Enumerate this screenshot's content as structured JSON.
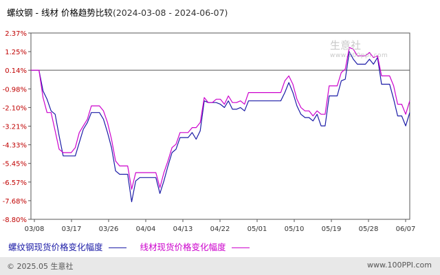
{
  "header": {
    "title": "螺纹钢 - 线材 价格趋势比较",
    "range": "(2024-03-08 - 2024-06-07)"
  },
  "watermark": {
    "name": "生意社",
    "url": "www.100ppi.com"
  },
  "legend": [
    {
      "label": "螺纹钢现货价格变化幅度",
      "color": "#1a1aa6"
    },
    {
      "label": "线材现货价格变化幅度",
      "color": "#cc00cc"
    }
  ],
  "footer": {
    "copyright": "© 2025.05 生意社",
    "site": "www.100PPI.com"
  },
  "chart_data": {
    "type": "line",
    "x_ticks": [
      "03/08",
      "03/17",
      "03/26",
      "04/04",
      "04/13",
      "04/22",
      "05/01",
      "05/10",
      "05/19",
      "05/28",
      "06/07"
    ],
    "y_ticks": [
      "2.37%",
      "1.25%",
      "0.14%",
      "-0.98%",
      "-2.10%",
      "-3.21%",
      "-4.33%",
      "-5.45%",
      "-6.57%",
      "-7.68%",
      "-8.80%"
    ],
    "ylim": [
      -8.8,
      2.37
    ],
    "reference_line": 0.14,
    "grid": false,
    "series": [
      {
        "name": "螺纹钢现货价格变化幅度",
        "color": "#1a1aa6",
        "points": [
          [
            0,
            0.14
          ],
          [
            2,
            0.14
          ],
          [
            3,
            -1.1
          ],
          [
            4,
            -1.6
          ],
          [
            5,
            -2.3
          ],
          [
            6,
            -2.5
          ],
          [
            7,
            -3.8
          ],
          [
            8,
            -5.0
          ],
          [
            9,
            -5.0
          ],
          [
            10,
            -5.0
          ],
          [
            11,
            -5.0
          ],
          [
            12,
            -4.2
          ],
          [
            13,
            -3.4
          ],
          [
            14,
            -3.0
          ],
          [
            15,
            -2.4
          ],
          [
            16,
            -2.4
          ],
          [
            17,
            -2.4
          ],
          [
            18,
            -2.8
          ],
          [
            19,
            -3.6
          ],
          [
            20,
            -4.5
          ],
          [
            21,
            -5.9
          ],
          [
            22,
            -6.1
          ],
          [
            23,
            -6.1
          ],
          [
            24,
            -6.1
          ],
          [
            25,
            -7.75
          ],
          [
            26,
            -6.5
          ],
          [
            27,
            -6.3
          ],
          [
            28,
            -6.3
          ],
          [
            29,
            -6.3
          ],
          [
            30,
            -6.3
          ],
          [
            31,
            -6.3
          ],
          [
            32,
            -7.25
          ],
          [
            33,
            -6.5
          ],
          [
            34,
            -5.6
          ],
          [
            35,
            -4.8
          ],
          [
            36,
            -4.6
          ],
          [
            37,
            -3.9
          ],
          [
            38,
            -3.9
          ],
          [
            39,
            -3.9
          ],
          [
            40,
            -3.6
          ],
          [
            41,
            -4.0
          ],
          [
            42,
            -3.5
          ],
          [
            43,
            -1.7
          ],
          [
            44,
            -1.8
          ],
          [
            45,
            -1.8
          ],
          [
            46,
            -1.8
          ],
          [
            47,
            -1.9
          ],
          [
            48,
            -2.1
          ],
          [
            49,
            -1.7
          ],
          [
            50,
            -2.2
          ],
          [
            51,
            -2.2
          ],
          [
            52,
            -2.1
          ],
          [
            53,
            -2.3
          ],
          [
            54,
            -1.7
          ],
          [
            55,
            -1.7
          ],
          [
            56,
            -1.7
          ],
          [
            57,
            -1.7
          ],
          [
            58,
            -1.7
          ],
          [
            59,
            -1.7
          ],
          [
            60,
            -1.7
          ],
          [
            61,
            -1.7
          ],
          [
            62,
            -1.7
          ],
          [
            63,
            -1.2
          ],
          [
            64,
            -0.6
          ],
          [
            65,
            -1.2
          ],
          [
            66,
            -2.0
          ],
          [
            67,
            -2.5
          ],
          [
            68,
            -2.7
          ],
          [
            69,
            -2.7
          ],
          [
            70,
            -2.9
          ],
          [
            71,
            -2.5
          ],
          [
            72,
            -3.2
          ],
          [
            73,
            -3.2
          ],
          [
            74,
            -1.4
          ],
          [
            75,
            -1.4
          ],
          [
            76,
            -1.4
          ],
          [
            77,
            -0.5
          ],
          [
            78,
            -0.4
          ],
          [
            79,
            1.25
          ],
          [
            80,
            0.8
          ],
          [
            81,
            0.5
          ],
          [
            82,
            0.5
          ],
          [
            83,
            0.5
          ],
          [
            84,
            0.8
          ],
          [
            85,
            0.5
          ],
          [
            86,
            0.9
          ],
          [
            87,
            -0.7
          ],
          [
            88,
            -0.7
          ],
          [
            89,
            -0.7
          ],
          [
            90,
            -1.6
          ],
          [
            91,
            -2.6
          ],
          [
            92,
            -2.6
          ],
          [
            93,
            -3.2
          ],
          [
            94,
            -2.4
          ]
        ]
      },
      {
        "name": "线材现货价格变化幅度",
        "color": "#cc00cc",
        "points": [
          [
            0,
            0.14
          ],
          [
            2,
            0.14
          ],
          [
            3,
            -1.5
          ],
          [
            4,
            -2.4
          ],
          [
            5,
            -2.4
          ],
          [
            6,
            -3.5
          ],
          [
            7,
            -4.6
          ],
          [
            8,
            -4.8
          ],
          [
            9,
            -4.8
          ],
          [
            10,
            -4.8
          ],
          [
            11,
            -4.5
          ],
          [
            12,
            -3.6
          ],
          [
            13,
            -3.2
          ],
          [
            14,
            -2.8
          ],
          [
            15,
            -2.0
          ],
          [
            16,
            -2.0
          ],
          [
            17,
            -2.0
          ],
          [
            18,
            -2.3
          ],
          [
            19,
            -3.0
          ],
          [
            20,
            -4.0
          ],
          [
            21,
            -5.3
          ],
          [
            22,
            -5.6
          ],
          [
            23,
            -5.6
          ],
          [
            24,
            -5.6
          ],
          [
            25,
            -7.0
          ],
          [
            26,
            -6.0
          ],
          [
            27,
            -6.0
          ],
          [
            28,
            -6.0
          ],
          [
            29,
            -6.0
          ],
          [
            30,
            -6.0
          ],
          [
            31,
            -6.0
          ],
          [
            32,
            -6.9
          ],
          [
            33,
            -6.0
          ],
          [
            34,
            -5.3
          ],
          [
            35,
            -4.5
          ],
          [
            36,
            -4.3
          ],
          [
            37,
            -3.6
          ],
          [
            38,
            -3.6
          ],
          [
            39,
            -3.6
          ],
          [
            40,
            -3.3
          ],
          [
            41,
            -3.3
          ],
          [
            42,
            -3.0
          ],
          [
            43,
            -1.5
          ],
          [
            44,
            -1.8
          ],
          [
            45,
            -1.8
          ],
          [
            46,
            -1.6
          ],
          [
            47,
            -1.6
          ],
          [
            48,
            -1.9
          ],
          [
            49,
            -1.4
          ],
          [
            50,
            -1.8
          ],
          [
            51,
            -1.8
          ],
          [
            52,
            -1.7
          ],
          [
            53,
            -1.9
          ],
          [
            54,
            -1.2
          ],
          [
            55,
            -1.2
          ],
          [
            56,
            -1.2
          ],
          [
            57,
            -1.2
          ],
          [
            58,
            -1.2
          ],
          [
            59,
            -1.2
          ],
          [
            60,
            -1.2
          ],
          [
            61,
            -1.2
          ],
          [
            62,
            -1.2
          ],
          [
            63,
            -0.5
          ],
          [
            64,
            -0.2
          ],
          [
            65,
            -0.7
          ],
          [
            66,
            -1.6
          ],
          [
            67,
            -2.1
          ],
          [
            68,
            -2.3
          ],
          [
            69,
            -2.3
          ],
          [
            70,
            -2.6
          ],
          [
            71,
            -2.3
          ],
          [
            72,
            -2.5
          ],
          [
            73,
            -2.5
          ],
          [
            74,
            -0.8
          ],
          [
            75,
            -0.8
          ],
          [
            76,
            -0.8
          ],
          [
            77,
            0.0
          ],
          [
            78,
            0.2
          ],
          [
            79,
            1.5
          ],
          [
            80,
            1.4
          ],
          [
            81,
            1.0
          ],
          [
            82,
            1.0
          ],
          [
            83,
            1.0
          ],
          [
            84,
            1.2
          ],
          [
            85,
            0.9
          ],
          [
            86,
            1.0
          ],
          [
            87,
            -0.2
          ],
          [
            88,
            -0.2
          ],
          [
            89,
            -0.2
          ],
          [
            90,
            -0.8
          ],
          [
            91,
            -1.9
          ],
          [
            92,
            -1.9
          ],
          [
            93,
            -2.5
          ],
          [
            94,
            -1.7
          ]
        ]
      }
    ]
  }
}
